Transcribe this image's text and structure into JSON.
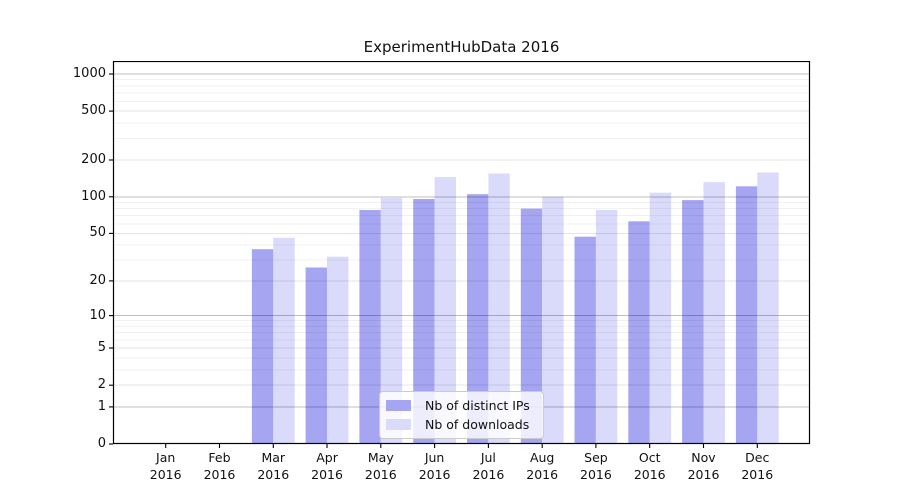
{
  "figure": {
    "background": "#ffffff"
  },
  "chart_data": {
    "type": "bar",
    "title": "ExperimentHubData 2016",
    "categories": [
      "Jan 2016",
      "Feb 2016",
      "Mar 2016",
      "Apr 2016",
      "May 2016",
      "Jun 2016",
      "Jul 2016",
      "Aug 2016",
      "Sep 2016",
      "Oct 2016",
      "Nov 2016",
      "Dec 2016"
    ],
    "series": [
      {
        "name": "Nb of distinct IPs",
        "color": "#a5a5f2",
        "values": [
          0,
          0,
          37,
          26,
          78,
          96,
          105,
          80,
          47,
          63,
          94,
          122
        ]
      },
      {
        "name": "Nb of downloads",
        "color": "#dadafb",
        "values": [
          0,
          0,
          46,
          32,
          98,
          145,
          155,
          100,
          78,
          108,
          132,
          158
        ]
      }
    ],
    "y_ticks": [
      0,
      1,
      2,
      5,
      10,
      20,
      50,
      100,
      200,
      500,
      1000
    ],
    "y_scale": "log10(1+x)",
    "ylim": [
      0,
      1276
    ],
    "xlabel": "",
    "ylabel": "",
    "grid": true,
    "legend_position": "inside-bottom-center",
    "axis_color": "#000000",
    "grid_major_color": "#c3c3c3",
    "grid_mid_color": "#e4e4e4",
    "grid_minor_color": "#f0f0f0"
  }
}
